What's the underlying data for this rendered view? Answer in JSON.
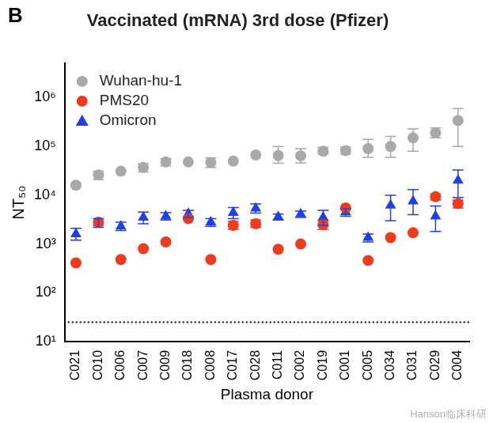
{
  "chart_data": {
    "type": "scatter",
    "panel": "B",
    "title": "Vaccinated (mRNA) 3rd dose (Pfizer)",
    "x_label": "Plasma donor",
    "y_label": "NT₅₀",
    "watermark": "Hanson临床科研",
    "categories": [
      "C021",
      "C010",
      "C006",
      "C007",
      "C009",
      "C018",
      "C008",
      "C017",
      "C028",
      "C011",
      "C002",
      "C019",
      "C001",
      "C005",
      "C034",
      "C031",
      "C029",
      "C004"
    ],
    "series": [
      {
        "name": "Wuhan-hu-1",
        "color": "#a9a9a9",
        "marker": "circle",
        "values": [
          16000,
          26000,
          31000,
          37000,
          48000,
          48000,
          47000,
          50000,
          67000,
          65000,
          64000,
          80000,
          82000,
          90000,
          100000,
          150000,
          190000,
          340000
        ],
        "error_low": [
          null,
          21000,
          null,
          30000,
          40000,
          null,
          37000,
          null,
          null,
          45000,
          46000,
          70000,
          70000,
          60000,
          60000,
          80000,
          150000,
          100000
        ],
        "error_high": [
          null,
          31000,
          null,
          44000,
          56000,
          null,
          58000,
          null,
          null,
          100000,
          90000,
          95000,
          98000,
          140000,
          160000,
          230000,
          240000,
          600000
        ]
      },
      {
        "name": "PMS20",
        "color": "#f03c1e",
        "marker": "circle",
        "values": [
          410,
          2800,
          480,
          800,
          1100,
          3300,
          480,
          2400,
          2600,
          780,
          1000,
          2500,
          5500,
          460,
          1350,
          1700,
          9300,
          6700
        ],
        "error_low": [
          null,
          null,
          null,
          null,
          null,
          null,
          null,
          2000,
          2200,
          null,
          null,
          2000,
          null,
          null,
          null,
          null,
          8000,
          5500
        ],
        "error_high": [
          null,
          null,
          null,
          null,
          null,
          null,
          null,
          2900,
          3100,
          null,
          null,
          3000,
          null,
          null,
          null,
          null,
          10500,
          7900
        ]
      },
      {
        "name": "Omicron",
        "color": "#1f3fe8",
        "marker": "triangle",
        "values": [
          1600,
          2700,
          2300,
          3500,
          3700,
          4200,
          2800,
          4400,
          5400,
          3600,
          4100,
          3500,
          4500,
          1350,
          6200,
          7500,
          3700,
          20000
        ],
        "error_low": [
          1200,
          2200,
          1900,
          2600,
          3100,
          3500,
          2300,
          3300,
          4300,
          3100,
          3500,
          2400,
          3700,
          1100,
          3000,
          4000,
          1800,
          9000
        ],
        "error_high": [
          2100,
          3300,
          2800,
          4500,
          4400,
          4900,
          3300,
          5600,
          6600,
          4100,
          4700,
          4900,
          5300,
          1600,
          10000,
          13000,
          6000,
          33000
        ]
      }
    ],
    "threshold": 25,
    "threshold_line_style": "dotted",
    "log": "y",
    "ylim": [
      10,
      5000000
    ],
    "yticks": [
      {
        "value": 10,
        "label": "10¹"
      },
      {
        "value": 100,
        "label": "10²"
      },
      {
        "value": 1000,
        "label": "10³"
      },
      {
        "value": 10000,
        "label": "10⁴"
      },
      {
        "value": 100000,
        "label": "10⁵"
      },
      {
        "value": 1000000,
        "label": "10⁶"
      }
    ],
    "grid": false,
    "legend": "top-left"
  }
}
